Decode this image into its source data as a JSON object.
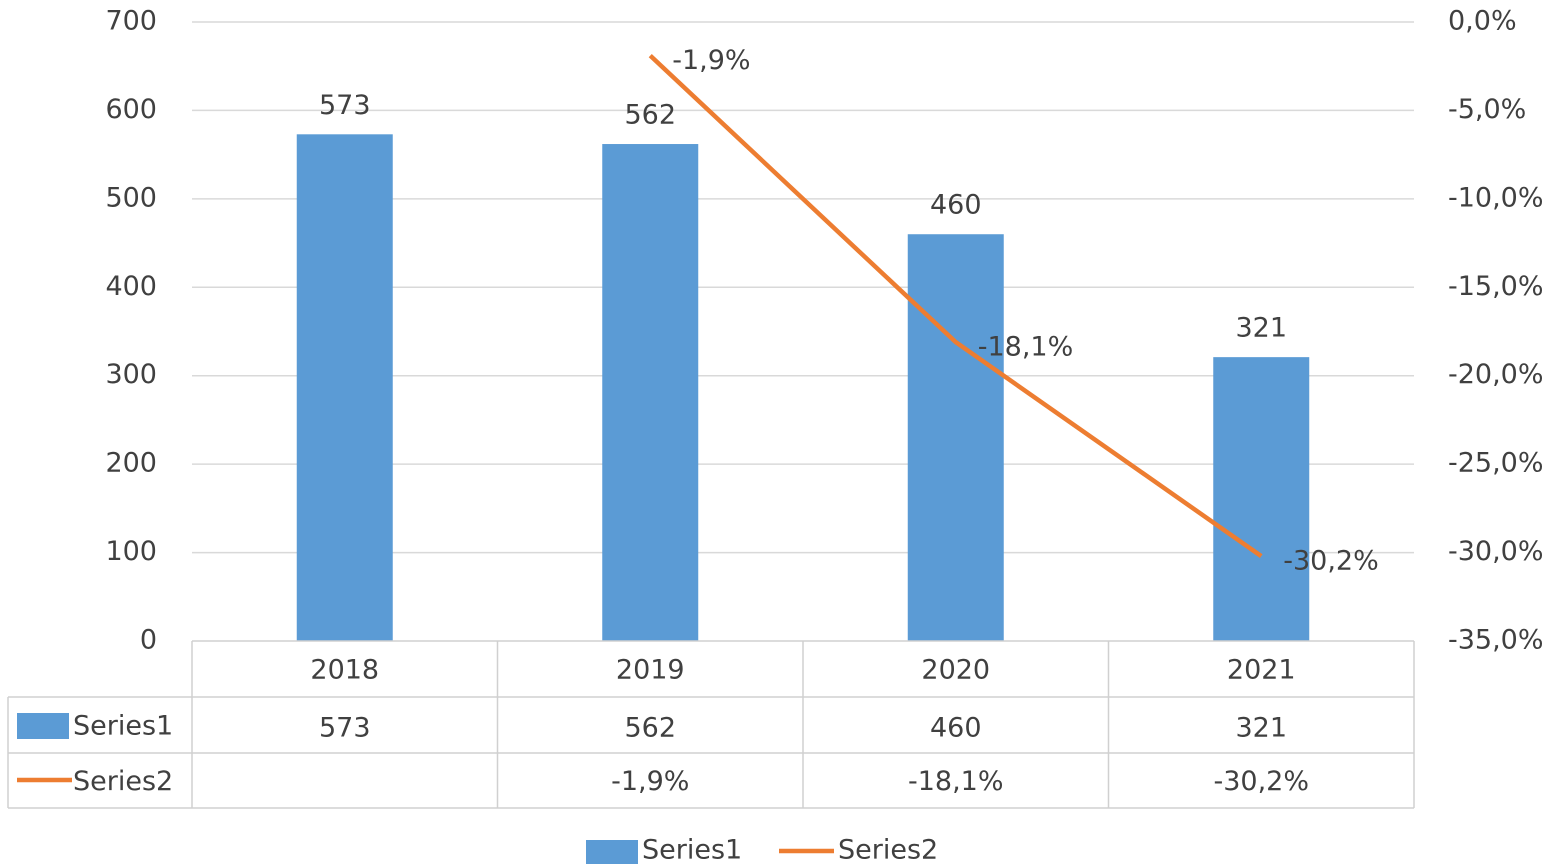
{
  "chart_data": {
    "type": "bar-line",
    "categories": [
      "2018",
      "2019",
      "2020",
      "2021"
    ],
    "series": [
      {
        "name": "Series1",
        "type": "bar",
        "color": "#5b9bd5",
        "values": [
          573,
          562,
          460,
          321
        ]
      },
      {
        "name": "Series2",
        "type": "line",
        "axis": "y2",
        "color": "#ed7d31",
        "values": [
          null,
          -1.9,
          -18.1,
          -30.2
        ],
        "value_labels": [
          null,
          "-1,9%",
          "-18,1%",
          "-30,2%"
        ]
      }
    ],
    "ylim": [
      0,
      700
    ],
    "yticks": [
      0,
      100,
      200,
      300,
      400,
      500,
      600,
      700
    ],
    "y2lim": [
      -35,
      0
    ],
    "y2ticks": [
      {
        "value": 0,
        "label": "0,0%"
      },
      {
        "value": -5,
        "label": "-5,0%"
      },
      {
        "value": -10,
        "label": "-10,0%"
      },
      {
        "value": -15,
        "label": "-15,0%"
      },
      {
        "value": -20,
        "label": "-20,0%"
      },
      {
        "value": -25,
        "label": "-25,0%"
      },
      {
        "value": -30,
        "label": "-30,0%"
      },
      {
        "value": -35,
        "label": "-35,0%"
      }
    ],
    "grid": true,
    "data_table": true,
    "legend": "bottom"
  }
}
